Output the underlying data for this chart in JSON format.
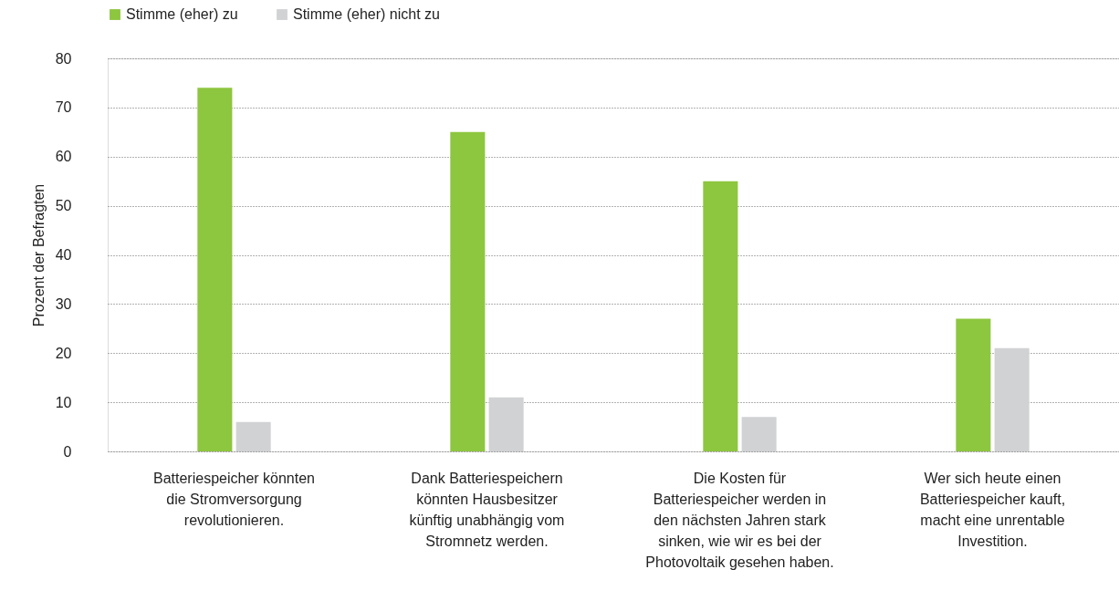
{
  "chart_data": {
    "type": "bar",
    "ylabel": "Prozent der Befragten",
    "categories": [
      "Batteriespeicher könnten die Stromversorgung revolutionieren.",
      "Dank Batteriespeichern könnten Hausbesitzer künftig unabhängig vom Stromnetz werden.",
      "Die Kosten für Batteriespeicher werden in den nächsten Jahren stark sinken, wie wir es bei der Photovoltaik gesehen haben.",
      "Wer sich heute einen Batteriespeicher kauft, macht eine unrentable Investition."
    ],
    "series": [
      {
        "name": "Stimme (eher) zu",
        "color": "#8dc63f",
        "values": [
          74,
          65,
          55,
          27
        ]
      },
      {
        "name": "Stimme (eher) nicht zu",
        "color": "#d1d2d4",
        "values": [
          6,
          11,
          7,
          21
        ]
      }
    ],
    "ylim": [
      0,
      80
    ],
    "yticks": [
      0,
      10,
      20,
      30,
      40,
      50,
      60,
      70,
      80
    ],
    "grid": "y",
    "legend": "top left"
  }
}
